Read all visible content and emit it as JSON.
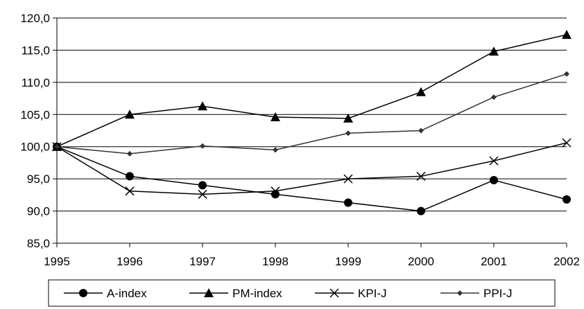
{
  "chart_data": {
    "type": "line",
    "x": [
      "1995",
      "1996",
      "1997",
      "1998",
      "1999",
      "2000",
      "2001",
      "2002"
    ],
    "ylim": [
      85,
      120
    ],
    "ytick_step": 5,
    "y_tick_labels": [
      "85,0",
      "90,0",
      "95,0",
      "100,0",
      "105,0",
      "110,0",
      "115,0",
      "120,0"
    ],
    "grid": "horizontal",
    "legend_placement": "bottom",
    "title": "",
    "xlabel": "",
    "ylabel": "",
    "series": [
      {
        "name": "A-index",
        "marker": "circle",
        "color": "#000000",
        "values": [
          100.0,
          95.4,
          94.0,
          92.6,
          91.3,
          90.0,
          94.8,
          91.8
        ]
      },
      {
        "name": "PM-index",
        "marker": "triangle",
        "color": "#000000",
        "values": [
          100.0,
          105.0,
          106.3,
          104.6,
          104.4,
          108.5,
          114.8,
          117.4
        ]
      },
      {
        "name": "KPI-J",
        "marker": "x",
        "color": "#000000",
        "values": [
          100.0,
          93.1,
          92.6,
          93.1,
          95.0,
          95.4,
          97.8,
          100.6
        ]
      },
      {
        "name": "PPI-J",
        "marker": "diamond",
        "color": "#333333",
        "values": [
          100.0,
          98.9,
          100.1,
          99.5,
          102.1,
          102.5,
          107.7,
          111.3
        ]
      }
    ]
  }
}
